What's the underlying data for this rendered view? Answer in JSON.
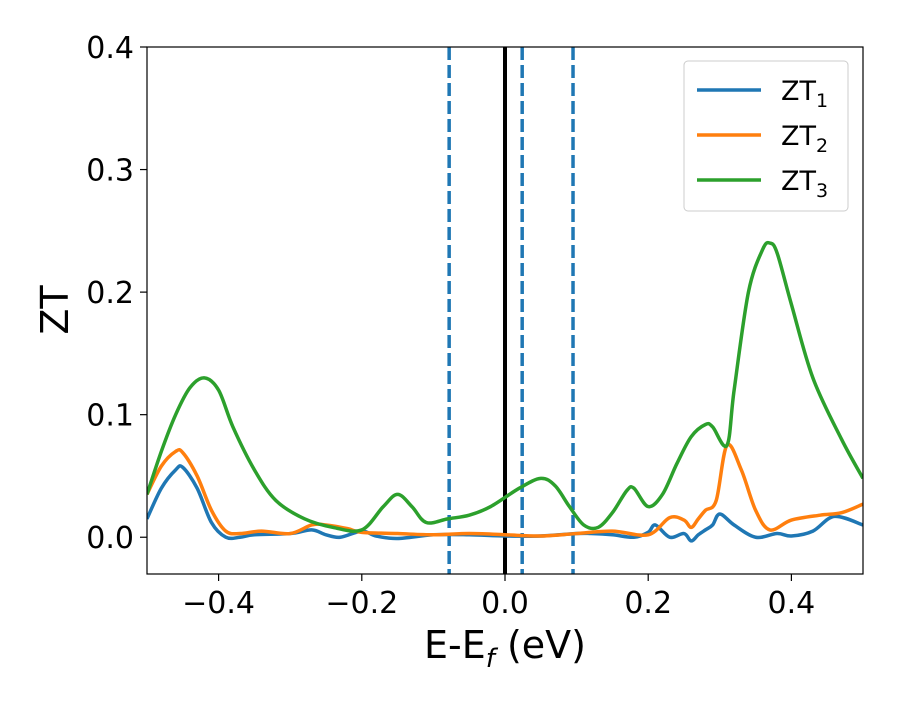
{
  "chart_data": {
    "type": "line",
    "title": "",
    "xlabel": {
      "main": "E-E",
      "sub": "f",
      "unit": " (eV)"
    },
    "ylabel": "ZT",
    "xlim": [
      -0.5,
      0.5
    ],
    "ylim": [
      -0.03,
      0.4
    ],
    "xticks": [
      -0.4,
      -0.2,
      0.0,
      0.2,
      0.4
    ],
    "xtick_labels": [
      "−0.4",
      "−0.2",
      "0.0",
      "0.2",
      "0.4"
    ],
    "yticks": [
      0.0,
      0.1,
      0.2,
      0.3,
      0.4
    ],
    "ytick_labels": [
      "0.0",
      "0.1",
      "0.2",
      "0.3",
      "0.4"
    ],
    "grid": false,
    "legend_position": "top-right",
    "vlines": [
      {
        "x": 0.0,
        "style": "solid",
        "color": "#000000"
      },
      {
        "x": -0.078,
        "style": "dashed",
        "color": "#1f77b4"
      },
      {
        "x": 0.024,
        "style": "dashed",
        "color": "#1f77b4"
      },
      {
        "x": 0.095,
        "style": "dashed",
        "color": "#1f77b4"
      }
    ],
    "series": [
      {
        "name": "ZT",
        "name_sub": "1",
        "color": "#1f77b4",
        "x": [
          -0.5,
          -0.48,
          -0.46,
          -0.45,
          -0.43,
          -0.41,
          -0.39,
          -0.37,
          -0.35,
          -0.3,
          -0.27,
          -0.25,
          -0.23,
          -0.2,
          -0.18,
          -0.15,
          -0.1,
          -0.05,
          0.0,
          0.05,
          0.1,
          0.12,
          0.15,
          0.18,
          0.2,
          0.21,
          0.23,
          0.25,
          0.26,
          0.27,
          0.28,
          0.29,
          0.3,
          0.32,
          0.35,
          0.38,
          0.4,
          0.43,
          0.46,
          0.5
        ],
        "y": [
          0.015,
          0.04,
          0.055,
          0.057,
          0.04,
          0.012,
          0.0,
          0.0,
          0.002,
          0.003,
          0.006,
          0.002,
          0.0,
          0.005,
          0.001,
          -0.001,
          0.002,
          0.002,
          0.001,
          0.001,
          0.003,
          0.003,
          0.002,
          0.0,
          0.004,
          0.01,
          0.0,
          0.003,
          -0.003,
          0.002,
          0.006,
          0.01,
          0.019,
          0.01,
          0.0,
          0.003,
          0.001,
          0.005,
          0.017,
          0.01
        ]
      },
      {
        "name": "ZT",
        "name_sub": "2",
        "color": "#ff7f0e",
        "x": [
          -0.5,
          -0.48,
          -0.46,
          -0.45,
          -0.43,
          -0.41,
          -0.39,
          -0.37,
          -0.34,
          -0.3,
          -0.27,
          -0.25,
          -0.22,
          -0.2,
          -0.15,
          -0.1,
          -0.05,
          0.0,
          0.05,
          0.1,
          0.15,
          0.2,
          0.23,
          0.25,
          0.26,
          0.27,
          0.28,
          0.295,
          0.31,
          0.33,
          0.35,
          0.37,
          0.4,
          0.44,
          0.47,
          0.5
        ],
        "y": [
          0.035,
          0.058,
          0.07,
          0.069,
          0.05,
          0.022,
          0.005,
          0.003,
          0.005,
          0.003,
          0.01,
          0.01,
          0.007,
          0.004,
          0.003,
          0.002,
          0.003,
          0.002,
          0.001,
          0.003,
          0.005,
          0.002,
          0.016,
          0.014,
          0.008,
          0.015,
          0.022,
          0.03,
          0.075,
          0.055,
          0.022,
          0.006,
          0.014,
          0.018,
          0.02,
          0.027
        ]
      },
      {
        "name": "ZT",
        "name_sub": "3",
        "color": "#2ca02c",
        "x": [
          -0.5,
          -0.48,
          -0.46,
          -0.44,
          -0.42,
          -0.4,
          -0.38,
          -0.35,
          -0.32,
          -0.28,
          -0.24,
          -0.2,
          -0.17,
          -0.15,
          -0.13,
          -0.11,
          -0.08,
          -0.05,
          -0.02,
          0.02,
          0.05,
          0.07,
          0.09,
          0.11,
          0.13,
          0.15,
          0.17,
          0.18,
          0.2,
          0.22,
          0.24,
          0.26,
          0.28,
          0.29,
          0.31,
          0.32,
          0.34,
          0.36,
          0.37,
          0.38,
          0.4,
          0.43,
          0.47,
          0.5
        ],
        "y": [
          0.035,
          0.07,
          0.1,
          0.122,
          0.13,
          0.12,
          0.09,
          0.055,
          0.03,
          0.015,
          0.008,
          0.006,
          0.025,
          0.035,
          0.025,
          0.012,
          0.015,
          0.018,
          0.025,
          0.04,
          0.048,
          0.042,
          0.025,
          0.01,
          0.008,
          0.02,
          0.038,
          0.04,
          0.025,
          0.035,
          0.06,
          0.082,
          0.092,
          0.09,
          0.075,
          0.12,
          0.2,
          0.235,
          0.24,
          0.232,
          0.19,
          0.13,
          0.08,
          0.048
        ]
      }
    ]
  }
}
